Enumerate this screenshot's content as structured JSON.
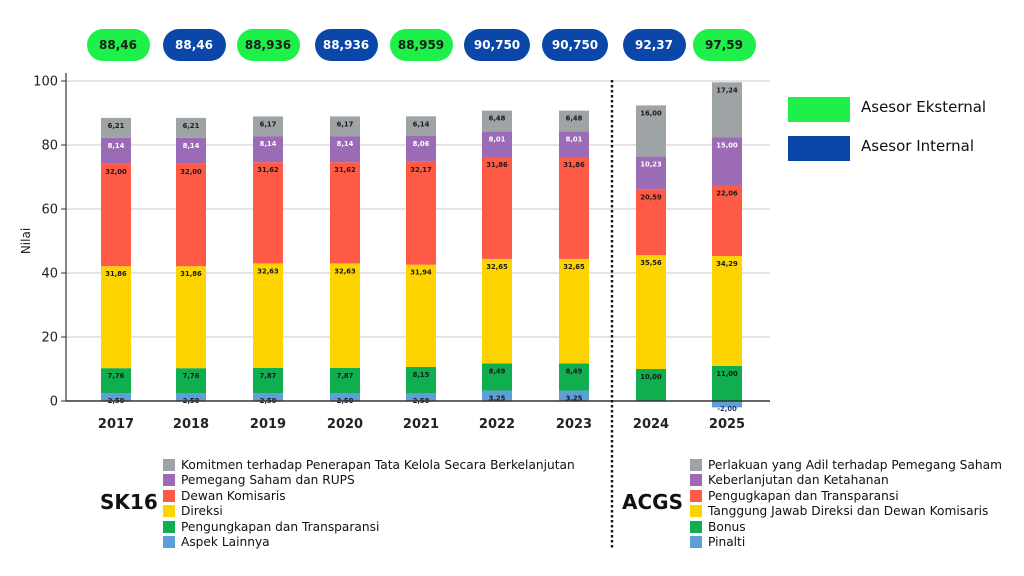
{
  "scores": [
    {
      "year": "2017",
      "label": "88,46",
      "assessor": "external"
    },
    {
      "year": "2018",
      "label": "88,46",
      "assessor": "internal"
    },
    {
      "year": "2019",
      "label": "88,936",
      "assessor": "external"
    },
    {
      "year": "2020",
      "label": "88,936",
      "assessor": "internal"
    },
    {
      "year": "2021",
      "label": "88,959",
      "assessor": "external"
    },
    {
      "year": "2022",
      "label": "90,750",
      "assessor": "internal"
    },
    {
      "year": "2023",
      "label": "90,750",
      "assessor": "internal"
    },
    {
      "year": "2024",
      "label": "92,37",
      "assessor": "internal"
    },
    {
      "year": "2025",
      "label": "97,59",
      "assessor": "external"
    }
  ],
  "assessor_legend": {
    "external": {
      "label": "Asesor Eksternal",
      "color": "#1ef04a"
    },
    "internal": {
      "label": "Asesor Internal",
      "color": "#0b47a8"
    }
  },
  "groups": {
    "sk16": {
      "title": "SK16",
      "items": [
        {
          "label": "Komitmen terhadap Penerapan Tata Kelola Secara Berkelanjutan",
          "color": "#9ea3a6"
        },
        {
          "label": "Pemegang Saham dan RUPS",
          "color": "#9b6bb5"
        },
        {
          "label": "Dewan Komisaris",
          "color": "#ff5a45"
        },
        {
          "label": "Direksi",
          "color": "#fdd400"
        },
        {
          "label": "Pengungkapan dan Transparansi",
          "color": "#0fae4e"
        },
        {
          "label": "Aspek Lainnya",
          "color": "#5f9fd8"
        }
      ]
    },
    "acgs": {
      "title": "ACGS",
      "items": [
        {
          "label": "Perlakuan yang Adil terhadap Pemegang Saham",
          "color": "#9ea3a6"
        },
        {
          "label": "Keberlanjutan dan Ketahanan",
          "color": "#9b6bb5"
        },
        {
          "label": "Pengugkapan dan Transparansi",
          "color": "#ff5a45"
        },
        {
          "label": "Tanggung Jawab Direksi dan Dewan Komisaris",
          "color": "#fdd400"
        },
        {
          "label": "Bonus",
          "color": "#0fae4e"
        },
        {
          "label": "Pinalti",
          "color": "#5f9fd8"
        }
      ]
    }
  },
  "chart_data": {
    "type": "bar",
    "stacked": true,
    "title": "",
    "xlabel": "",
    "ylabel": "Nilai",
    "ylim": [
      0,
      100
    ],
    "yticks": [
      0,
      20,
      40,
      60,
      80,
      100
    ],
    "grid": true,
    "categories": [
      "2017",
      "2018",
      "2019",
      "2020",
      "2021",
      "2022",
      "2023",
      "2024",
      "2025"
    ],
    "series": [
      {
        "name": "Aspek Lainnya / Pinalti",
        "color": "#5f9fd8",
        "values": [
          2.5,
          2.5,
          2.5,
          2.5,
          2.5,
          3.25,
          3.25,
          null,
          -2.0
        ],
        "labels": [
          "2,50",
          "2,50",
          "2,50",
          "2,50",
          "2,50",
          "3,25",
          "3,25",
          null,
          "-2,00"
        ]
      },
      {
        "name": "Pengungkapan dan Transparansi / Bonus",
        "color": "#0fae4e",
        "values": [
          7.76,
          7.76,
          7.87,
          7.87,
          8.15,
          8.49,
          8.49,
          10.0,
          11.0
        ],
        "labels": [
          "7,76",
          "7,76",
          "7,87",
          "7,87",
          "8,15",
          "8,49",
          "8,49",
          "10,00",
          "11,00"
        ]
      },
      {
        "name": "Direksi / Tanggung Jawab Direksi dan Dewan Komisaris",
        "color": "#fdd400",
        "values": [
          31.86,
          31.86,
          32.63,
          32.63,
          31.94,
          32.65,
          32.65,
          35.56,
          34.29
        ],
        "labels": [
          "31,86",
          "31,86",
          "32,63",
          "32,63",
          "31,94",
          "32,65",
          "32,65",
          "35,56",
          "34,29"
        ]
      },
      {
        "name": "Dewan Komisaris / Pengugkapan dan Transparansi",
        "color": "#ff5a45",
        "values": [
          32.0,
          32.0,
          31.62,
          31.62,
          32.17,
          31.86,
          31.86,
          20.59,
          22.06
        ],
        "labels": [
          "32,00",
          "32,00",
          "31,62",
          "31,62",
          "32,17",
          "31,86",
          "31,86",
          "20,59",
          "22,06"
        ]
      },
      {
        "name": "Pemegang Saham dan RUPS / Keberlanjutan dan Ketahanan",
        "color": "#9b6bb5",
        "values": [
          8.14,
          8.14,
          8.14,
          8.14,
          8.06,
          8.01,
          8.01,
          10.23,
          15.0
        ],
        "labels": [
          "8,14",
          "8,14",
          "8,14",
          "8,14",
          "8,06",
          "8,01",
          "8,01",
          "10,23",
          "15,00"
        ]
      },
      {
        "name": "Komitmen terhadap Penerapan Tata Kelola / Perlakuan yang Adil",
        "color": "#9ea3a6",
        "values": [
          6.21,
          6.21,
          6.17,
          6.17,
          6.14,
          6.48,
          6.48,
          16.0,
          17.24
        ],
        "labels": [
          "6,21",
          "6,21",
          "6,17",
          "6,17",
          "6,14",
          "6,48",
          "6,48",
          "16,00",
          "17,24"
        ]
      }
    ],
    "divider_after_category": "2023",
    "legend": "top-right"
  }
}
